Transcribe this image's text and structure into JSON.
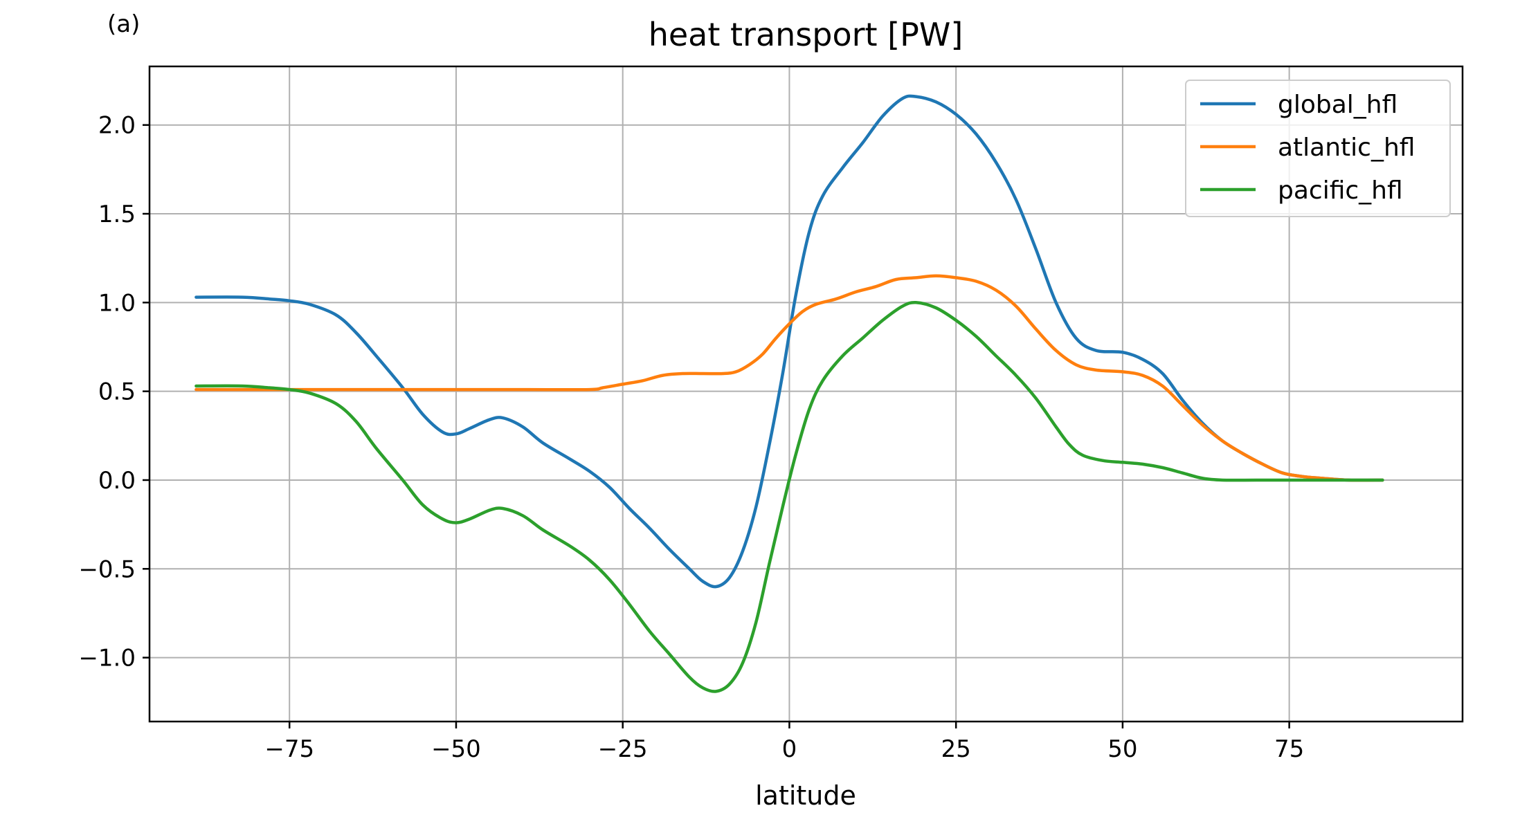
{
  "chart_data": {
    "type": "line",
    "panel_label": "(a)",
    "title": "heat transport [PW]",
    "xlabel": "latitude",
    "ylabel": "",
    "xlim": [
      -96,
      101
    ],
    "ylim": [
      -1.36,
      2.33
    ],
    "x_ticks": [
      -75,
      -50,
      -25,
      0,
      25,
      50,
      75
    ],
    "x_tick_labels": [
      "−75",
      "−50",
      "−25",
      "0",
      "25",
      "50",
      "75"
    ],
    "y_ticks": [
      -1.0,
      -0.5,
      0.0,
      0.5,
      1.0,
      1.5,
      2.0
    ],
    "y_tick_labels": [
      "−1.0",
      "−0.5",
      "0.0",
      "0.5",
      "1.0",
      "1.5",
      "2.0"
    ],
    "grid": true,
    "legend_position": "top-right",
    "series": [
      {
        "name": "global_hfl",
        "color": "#1f77b4",
        "points": [
          [
            -89,
            1.03
          ],
          [
            -82,
            1.03
          ],
          [
            -78,
            1.02
          ],
          [
            -75,
            1.01
          ],
          [
            -72,
            0.99
          ],
          [
            -68,
            0.93
          ],
          [
            -65,
            0.83
          ],
          [
            -62,
            0.7
          ],
          [
            -58,
            0.52
          ],
          [
            -55,
            0.37
          ],
          [
            -52,
            0.27
          ],
          [
            -50,
            0.26
          ],
          [
            -48,
            0.29
          ],
          [
            -45,
            0.34
          ],
          [
            -43,
            0.35
          ],
          [
            -40,
            0.3
          ],
          [
            -37,
            0.21
          ],
          [
            -33,
            0.12
          ],
          [
            -30,
            0.05
          ],
          [
            -27,
            -0.04
          ],
          [
            -24,
            -0.16
          ],
          [
            -21,
            -0.27
          ],
          [
            -18,
            -0.39
          ],
          [
            -15,
            -0.5
          ],
          [
            -13,
            -0.57
          ],
          [
            -11,
            -0.6
          ],
          [
            -9,
            -0.55
          ],
          [
            -7,
            -0.4
          ],
          [
            -5,
            -0.15
          ],
          [
            -3,
            0.2
          ],
          [
            -1,
            0.6
          ],
          [
            1,
            1.05
          ],
          [
            3,
            1.4
          ],
          [
            5,
            1.6
          ],
          [
            8,
            1.76
          ],
          [
            11,
            1.9
          ],
          [
            14,
            2.05
          ],
          [
            17,
            2.15
          ],
          [
            19,
            2.16
          ],
          [
            22,
            2.13
          ],
          [
            25,
            2.06
          ],
          [
            28,
            1.95
          ],
          [
            31,
            1.79
          ],
          [
            34,
            1.58
          ],
          [
            37,
            1.3
          ],
          [
            40,
            1.0
          ],
          [
            43,
            0.8
          ],
          [
            46,
            0.73
          ],
          [
            50,
            0.72
          ],
          [
            53,
            0.68
          ],
          [
            56,
            0.6
          ],
          [
            59,
            0.45
          ],
          [
            62,
            0.32
          ],
          [
            65,
            0.22
          ],
          [
            68,
            0.15
          ],
          [
            71,
            0.09
          ],
          [
            74,
            0.04
          ],
          [
            77,
            0.02
          ],
          [
            80,
            0.01
          ],
          [
            84,
            0.0
          ],
          [
            89,
            0.0
          ]
        ]
      },
      {
        "name": "atlantic_hfl",
        "color": "#ff7f0e",
        "points": [
          [
            -89,
            0.51
          ],
          [
            -80,
            0.51
          ],
          [
            -70,
            0.51
          ],
          [
            -60,
            0.51
          ],
          [
            -50,
            0.51
          ],
          [
            -40,
            0.51
          ],
          [
            -30,
            0.51
          ],
          [
            -28,
            0.52
          ],
          [
            -25,
            0.54
          ],
          [
            -22,
            0.56
          ],
          [
            -19,
            0.59
          ],
          [
            -16,
            0.6
          ],
          [
            -13,
            0.6
          ],
          [
            -10,
            0.6
          ],
          [
            -8,
            0.61
          ],
          [
            -6,
            0.65
          ],
          [
            -4,
            0.71
          ],
          [
            -2,
            0.8
          ],
          [
            0,
            0.88
          ],
          [
            2,
            0.95
          ],
          [
            4,
            0.99
          ],
          [
            7,
            1.02
          ],
          [
            10,
            1.06
          ],
          [
            13,
            1.09
          ],
          [
            16,
            1.13
          ],
          [
            19,
            1.14
          ],
          [
            22,
            1.15
          ],
          [
            25,
            1.14
          ],
          [
            28,
            1.12
          ],
          [
            31,
            1.07
          ],
          [
            34,
            0.98
          ],
          [
            37,
            0.85
          ],
          [
            40,
            0.73
          ],
          [
            43,
            0.65
          ],
          [
            46,
            0.62
          ],
          [
            50,
            0.61
          ],
          [
            53,
            0.59
          ],
          [
            56,
            0.53
          ],
          [
            59,
            0.42
          ],
          [
            62,
            0.31
          ],
          [
            65,
            0.22
          ],
          [
            68,
            0.15
          ],
          [
            71,
            0.09
          ],
          [
            74,
            0.04
          ],
          [
            77,
            0.02
          ],
          [
            80,
            0.01
          ],
          [
            84,
            0.0
          ],
          [
            89,
            0.0
          ]
        ]
      },
      {
        "name": "pacific_hfl",
        "color": "#2ca02c",
        "points": [
          [
            -89,
            0.53
          ],
          [
            -82,
            0.53
          ],
          [
            -78,
            0.52
          ],
          [
            -75,
            0.51
          ],
          [
            -72,
            0.49
          ],
          [
            -68,
            0.43
          ],
          [
            -65,
            0.33
          ],
          [
            -62,
            0.18
          ],
          [
            -58,
            0.0
          ],
          [
            -55,
            -0.14
          ],
          [
            -52,
            -0.22
          ],
          [
            -50,
            -0.24
          ],
          [
            -48,
            -0.22
          ],
          [
            -45,
            -0.17
          ],
          [
            -43,
            -0.16
          ],
          [
            -40,
            -0.2
          ],
          [
            -37,
            -0.28
          ],
          [
            -33,
            -0.37
          ],
          [
            -30,
            -0.45
          ],
          [
            -27,
            -0.56
          ],
          [
            -24,
            -0.7
          ],
          [
            -21,
            -0.85
          ],
          [
            -18,
            -0.98
          ],
          [
            -15,
            -1.11
          ],
          [
            -13,
            -1.17
          ],
          [
            -11,
            -1.19
          ],
          [
            -9,
            -1.15
          ],
          [
            -7,
            -1.03
          ],
          [
            -5,
            -0.8
          ],
          [
            -3,
            -0.47
          ],
          [
            -1,
            -0.15
          ],
          [
            1,
            0.15
          ],
          [
            3,
            0.4
          ],
          [
            5,
            0.56
          ],
          [
            8,
            0.7
          ],
          [
            11,
            0.8
          ],
          [
            14,
            0.9
          ],
          [
            17,
            0.98
          ],
          [
            19,
            1.0
          ],
          [
            22,
            0.97
          ],
          [
            25,
            0.9
          ],
          [
            28,
            0.81
          ],
          [
            31,
            0.7
          ],
          [
            34,
            0.59
          ],
          [
            37,
            0.46
          ],
          [
            40,
            0.3
          ],
          [
            42,
            0.2
          ],
          [
            44,
            0.14
          ],
          [
            47,
            0.11
          ],
          [
            50,
            0.1
          ],
          [
            53,
            0.09
          ],
          [
            56,
            0.07
          ],
          [
            59,
            0.04
          ],
          [
            62,
            0.01
          ],
          [
            65,
            0.0
          ],
          [
            70,
            0.0
          ],
          [
            75,
            0.0
          ],
          [
            80,
            0.0
          ],
          [
            85,
            0.0
          ],
          [
            89,
            0.0
          ]
        ]
      }
    ]
  }
}
